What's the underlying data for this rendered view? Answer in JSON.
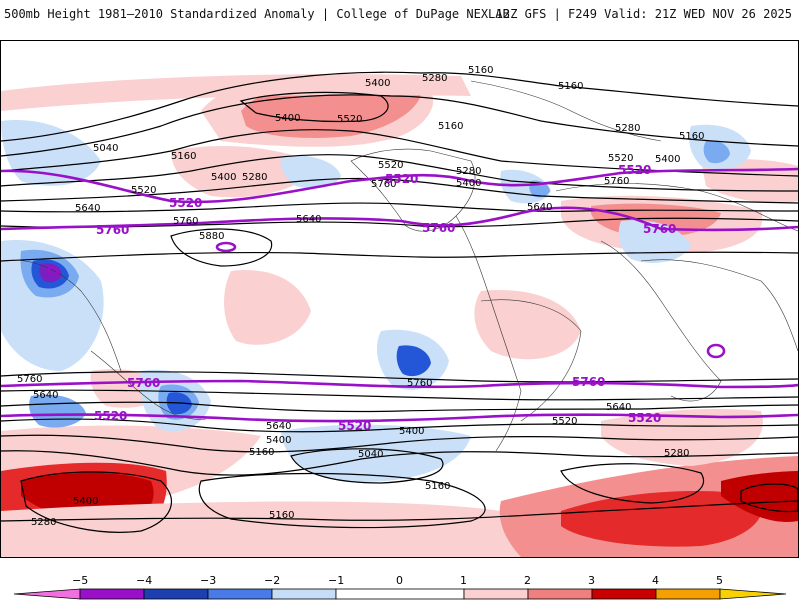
{
  "header": {
    "title": "500mb Height 1981–2010 Standardized Anomaly | College of DuPage NEXLAB",
    "run_info": "12Z GFS | F249 Valid: 21Z WED NOV 26 2025"
  },
  "map": {
    "contour_labels": {
      "l5160a": "5160",
      "l5160b": "5160",
      "l5160c": "5160",
      "l5160d": "5160",
      "l5160e": "5160",
      "l5280a": "5280",
      "l5280b": "5280",
      "l5280c": "5280",
      "l5280d": "5280",
      "l5280e": "5280",
      "l5400a": "5400",
      "l5400b": "5400",
      "l5400c": "5400",
      "l5400d": "5400",
      "l5400e": "5400",
      "l5400f": "5400",
      "l5400g": "5400",
      "l5520a": "5520",
      "l5520b": "5520",
      "l5520c": "5520",
      "l5520d": "5520",
      "l5520e": "5520",
      "l5640a": "5640",
      "l5640b": "5640",
      "l5640c": "5640",
      "l5640d": "5640",
      "l5640e": "5640",
      "l5640f": "5640",
      "l5760a": "5760",
      "l5760b": "5760",
      "l5760c": "5760",
      "l5760d": "5760",
      "l5760e": "5760",
      "l5880": "5880",
      "l5040a": "5040",
      "l5040b": "5040",
      "l5160f": "5160",
      "l5160g": "5160",
      "l5160h": "5160",
      "l5280f": "5280",
      "l5400h": "5400"
    },
    "purple_labels": {
      "p5520a": "5520",
      "p5520b": "5520",
      "p5520c": "5520",
      "p5520d": "5520",
      "p5520e": "5520",
      "p5520f": "5520",
      "p5760a": "5760",
      "p5760b": "5760",
      "p5760c": "5760",
      "p5760d": "5760",
      "p5760e": "5760"
    },
    "colors": {
      "pos1": "#fbd0d0",
      "pos2": "#f48f8f",
      "pos3": "#e42a2a",
      "pos4": "#c00000",
      "neg1": "#c9e0f8",
      "neg2": "#7aaaf0",
      "neg3": "#2456d8",
      "neg4": "#7a20c0",
      "contour": "#000000",
      "purple": "#9a10c8"
    }
  },
  "colorbar": {
    "ticks": [
      "−5",
      "−4",
      "−3",
      "−2",
      "−1",
      "0",
      "1",
      "2",
      "3",
      "4",
      "5"
    ],
    "segment_colors": [
      "#f070e0",
      "#9a10c8",
      "#1d3fb0",
      "#4a7ae8",
      "#c6ddf7",
      "#ffffff",
      "#fbd0d0",
      "#f08080",
      "#c80000",
      "#f5a000",
      "#f8d200"
    ]
  }
}
